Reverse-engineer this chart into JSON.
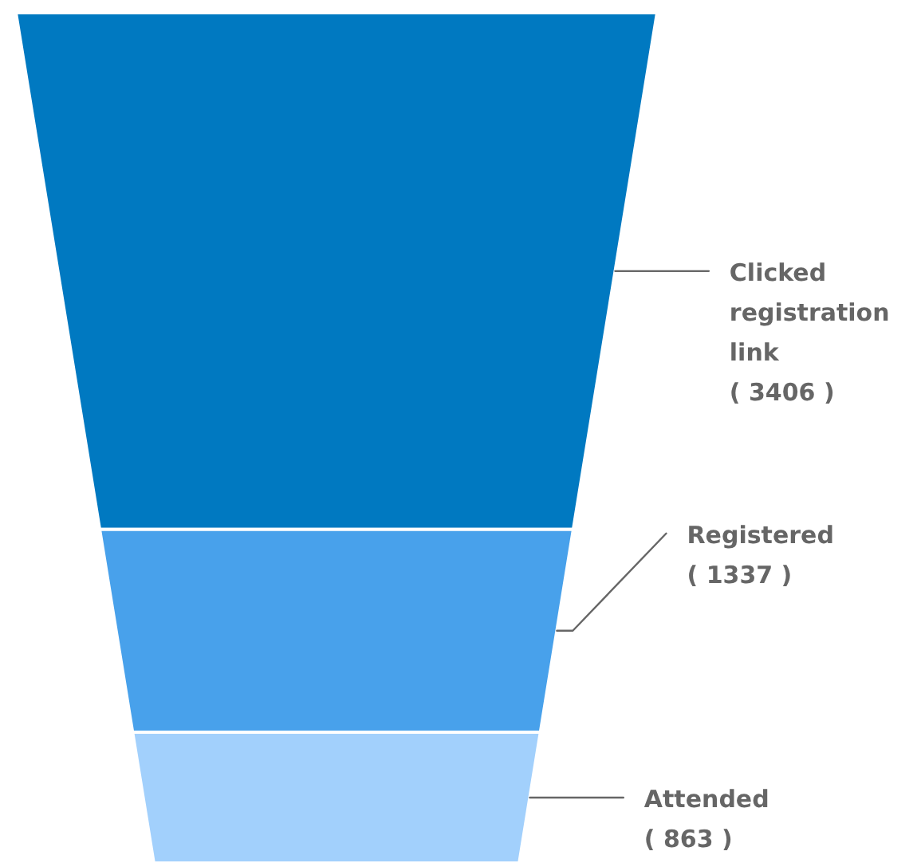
{
  "chart_data": {
    "type": "other",
    "categories": [
      "Clicked registration link",
      "Registered",
      "Attended"
    ],
    "values": [
      3406,
      1337,
      863
    ],
    "colors": [
      "#0079c1",
      "#48a1eb",
      "#a2d0fc"
    ],
    "value_labels": [
      "( 3406 )",
      "( 1337 )",
      "( 863 )"
    ]
  }
}
